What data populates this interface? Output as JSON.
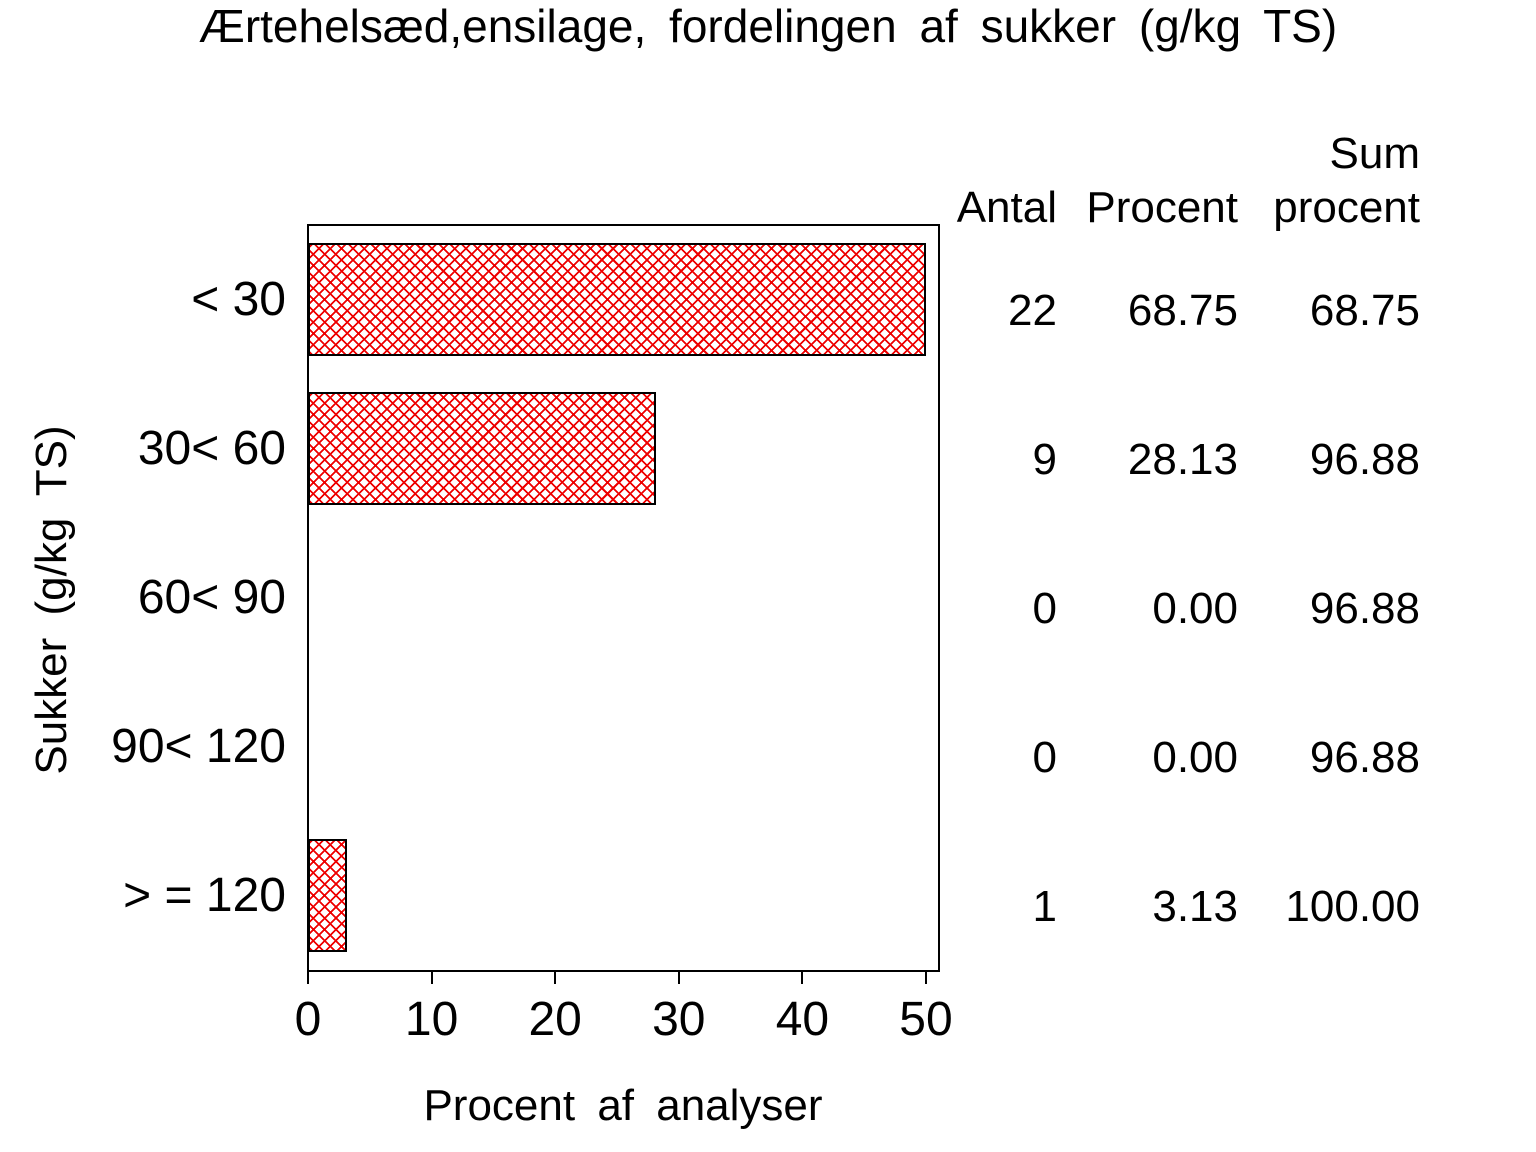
{
  "title": "Ærtehelsæd,ensilage, fordelingen af sukker (g/kg TS)",
  "chart_data": {
    "type": "bar",
    "orientation": "horizontal",
    "title": "Ærtehelsæd,ensilage, fordelingen af sukker (g/kg TS)",
    "xlabel": "Procent af analyser",
    "ylabel": "Sukker (g/kg TS)",
    "categories": [
      "< 30",
      "30< 60",
      "60< 90",
      "90< 120",
      "> = 120"
    ],
    "series": [
      {
        "name": "Procent af analyser",
        "values": [
          68.75,
          28.13,
          0,
          0,
          3.13
        ]
      }
    ],
    "xlim": [
      0,
      50
    ],
    "xticks": [
      "0",
      "10",
      "20",
      "30",
      "40",
      "50"
    ],
    "grid": false,
    "bar_clipped_at_xmax": true,
    "hatch_pattern": "diagonal-crosshatch",
    "legend_position": "none",
    "colors": {
      "bar_hatch": "#ee0000",
      "bar_border": "#000000",
      "frame": "#000000",
      "text": "#000000",
      "background": "#ffffff"
    }
  },
  "side_table": {
    "columns": [
      {
        "lines": [
          "Antal"
        ]
      },
      {
        "lines": [
          "Procent"
        ]
      },
      {
        "lines": [
          "Sum",
          "procent"
        ]
      }
    ],
    "rows": [
      [
        "22",
        "68.75",
        "68.75"
      ],
      [
        "9",
        "28.13",
        "96.88"
      ],
      [
        "0",
        "0.00",
        "96.88"
      ],
      [
        "0",
        "0.00",
        "96.88"
      ],
      [
        "1",
        "3.13",
        "100.00"
      ]
    ]
  }
}
